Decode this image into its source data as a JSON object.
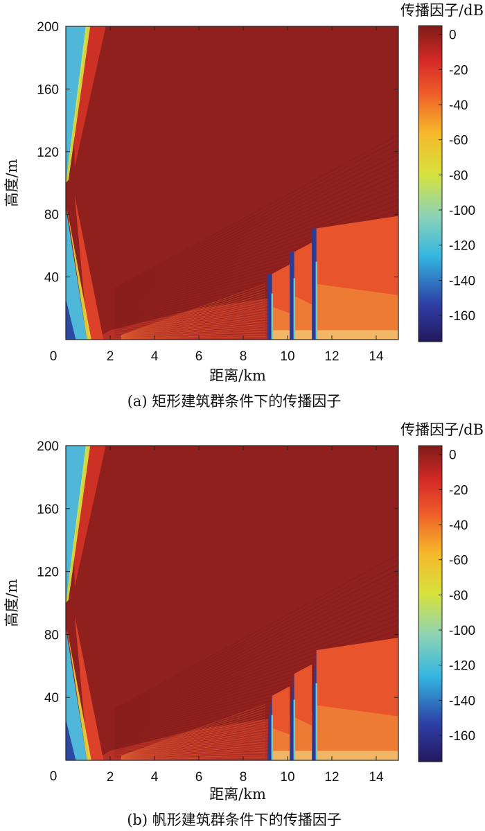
{
  "chart_data": [
    {
      "type": "heatmap",
      "caption": "(a) 矩形建筑群条件下的传播因子",
      "xlabel": "距离/km",
      "ylabel": "高度/m",
      "colorbar_label": "传播因子/dB",
      "xlim": [
        0,
        15
      ],
      "ylim": [
        0,
        200
      ],
      "x_ticks": [
        "0",
        "2",
        "4",
        "6",
        "8",
        "10",
        "12",
        "14"
      ],
      "y_ticks": [
        "40",
        "80",
        "120",
        "160",
        "200"
      ],
      "color_range": [
        -175,
        5
      ],
      "colorbar_ticks": [
        "0",
        "-20",
        "-40",
        "-60",
        "-80",
        "-100",
        "-120",
        "-140",
        "-160"
      ],
      "colormap": "jet",
      "buildings": [
        {
          "shape": "rectangle",
          "x_start": 9.1,
          "x_end": 9.3,
          "height": 42
        },
        {
          "shape": "rectangle",
          "x_start": 10.1,
          "x_end": 10.3,
          "height": 56
        },
        {
          "shape": "rectangle",
          "x_start": 11.1,
          "x_end": 11.3,
          "height": 71
        }
      ]
    },
    {
      "type": "heatmap",
      "caption": "(b) 帆形建筑群条件下的传播因子",
      "xlabel": "距离/km",
      "ylabel": "高度/m",
      "colorbar_label": "传播因子/dB",
      "xlim": [
        0,
        15
      ],
      "ylim": [
        0,
        200
      ],
      "x_ticks": [
        "0",
        "2",
        "4",
        "6",
        "8",
        "10",
        "12",
        "14"
      ],
      "y_ticks": [
        "40",
        "80",
        "120",
        "160",
        "200"
      ],
      "color_range": [
        -175,
        5
      ],
      "colorbar_ticks": [
        "0",
        "-20",
        "-40",
        "-60",
        "-80",
        "-100",
        "-120",
        "-140",
        "-160"
      ],
      "colormap": "jet",
      "buildings": [
        {
          "shape": "sail",
          "x_start": 9.1,
          "x_end": 9.3,
          "height": 41
        },
        {
          "shape": "sail",
          "x_start": 10.1,
          "x_end": 10.3,
          "height": 55
        },
        {
          "shape": "sail",
          "x_start": 11.1,
          "x_end": 11.3,
          "height": 70
        }
      ]
    }
  ]
}
